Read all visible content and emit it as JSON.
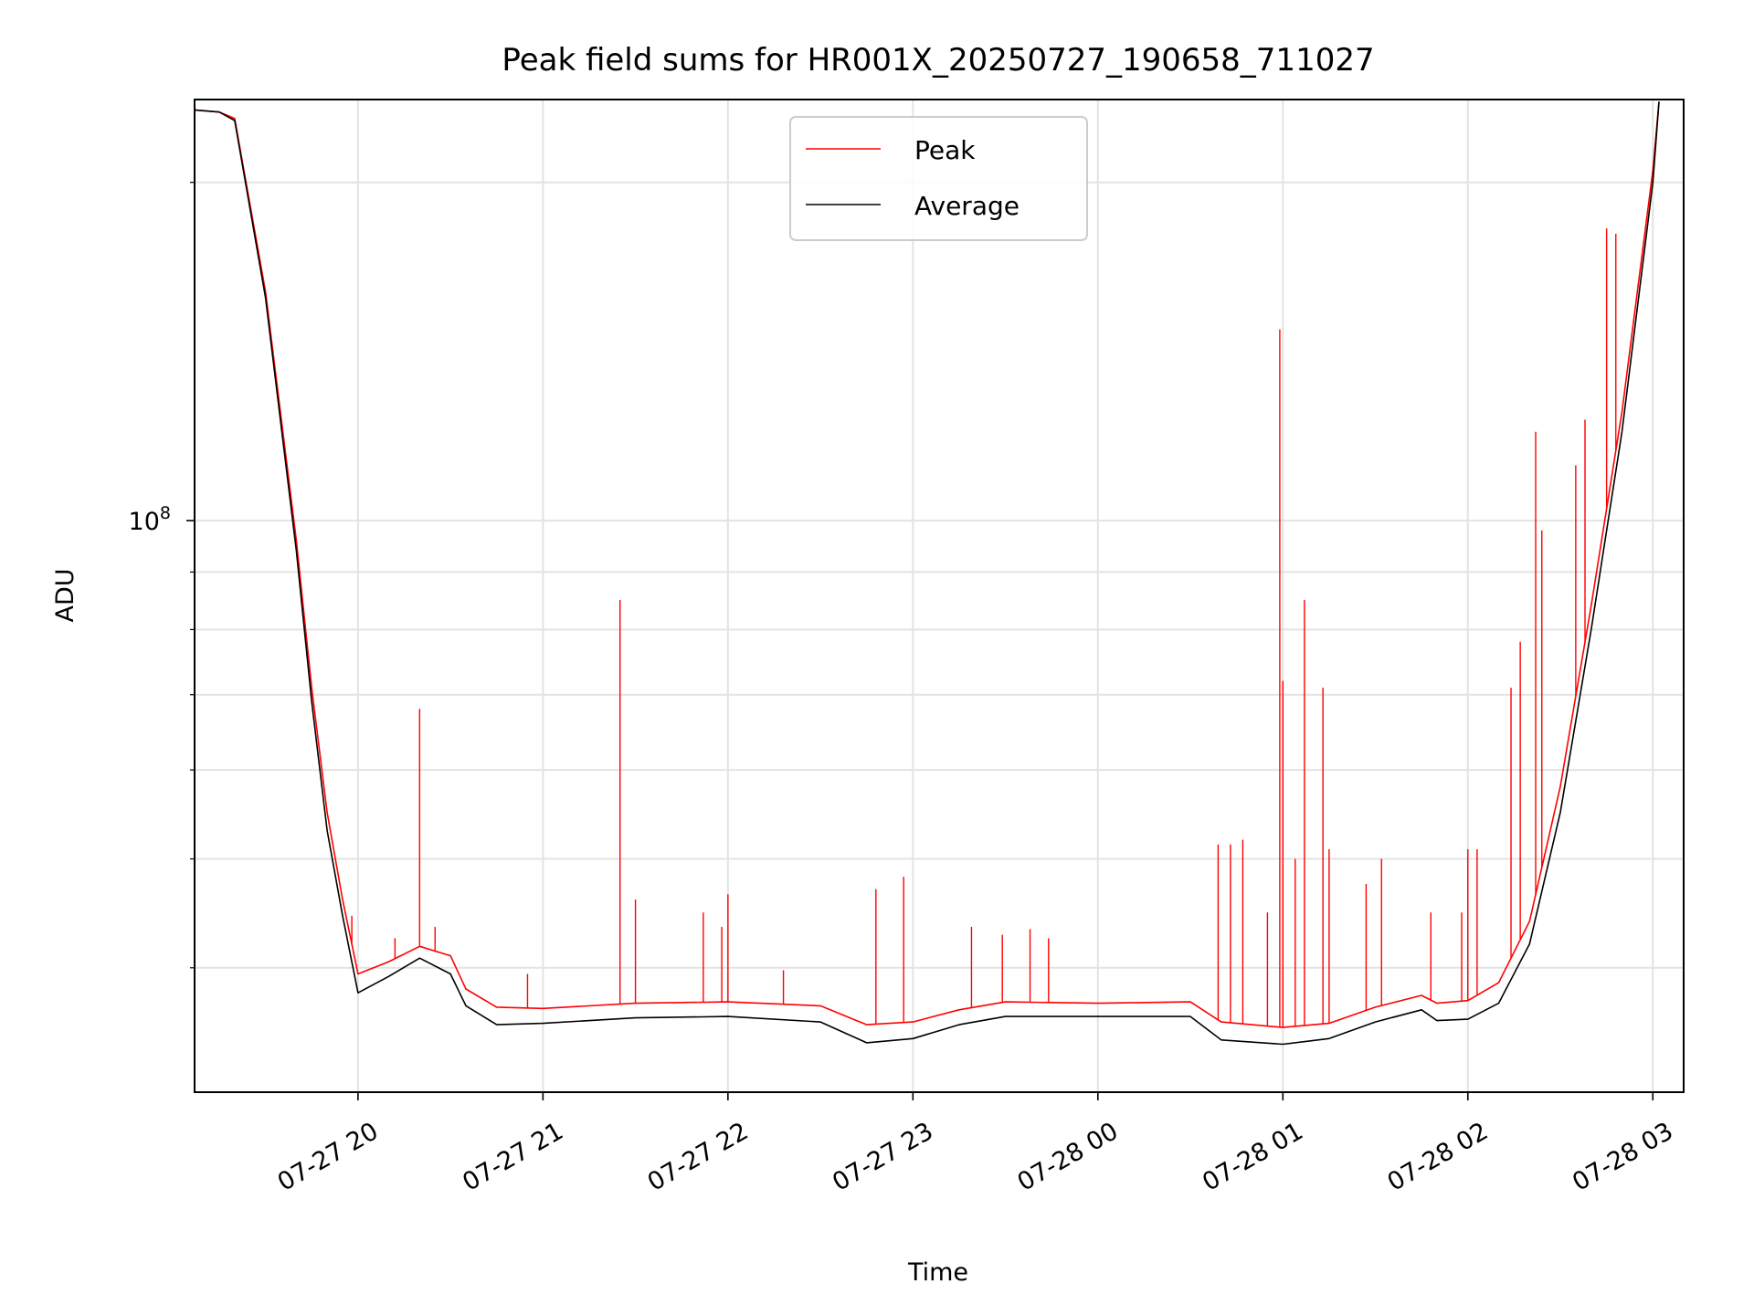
{
  "chart_data": {
    "type": "line",
    "title": "Peak field sums for HR001X_20250727_190658_711027",
    "xlabel": "Time",
    "ylabel": "ADU",
    "x_scale": "time",
    "y_scale": "log",
    "xlim": [
      "2025-07-27 19:07",
      "2025-07-28 03:10"
    ],
    "ylim": [
      31000000,
      237000000
    ],
    "x_tick_labels": [
      "07-27 20",
      "07-27 21",
      "07-27 22",
      "07-27 23",
      "07-28 00",
      "07-28 01",
      "07-28 02",
      "07-28 03"
    ],
    "y_tick_label_base": "10",
    "y_tick_label_exp": "8",
    "grid": true,
    "legend_position": "upper center",
    "series": [
      {
        "name": "Peak",
        "color": "#ff0000",
        "x": [
          "2025-07-27 19:07",
          "2025-07-27 19:15",
          "2025-07-27 19:20",
          "2025-07-27 19:30",
          "2025-07-27 19:40",
          "2025-07-27 19:45",
          "2025-07-27 19:50",
          "2025-07-27 19:55",
          "2025-07-27 20:00",
          "2025-07-27 20:10",
          "2025-07-27 20:20",
          "2025-07-27 20:30",
          "2025-07-27 20:35",
          "2025-07-27 20:45",
          "2025-07-27 21:00",
          "2025-07-27 21:30",
          "2025-07-27 22:00",
          "2025-07-27 22:30",
          "2025-07-27 22:45",
          "2025-07-27 23:00",
          "2025-07-27 23:15",
          "2025-07-27 23:30",
          "2025-07-28 00:00",
          "2025-07-28 00:30",
          "2025-07-28 00:40",
          "2025-07-28 01:00",
          "2025-07-28 01:15",
          "2025-07-28 01:30",
          "2025-07-28 01:45",
          "2025-07-28 01:50",
          "2025-07-28 02:00",
          "2025-07-28 02:10",
          "2025-07-28 02:20",
          "2025-07-28 02:30",
          "2025-07-28 02:40",
          "2025-07-28 02:50",
          "2025-07-28 03:00",
          "2025-07-28 03:02"
        ],
        "values": [
          232000000,
          231000000,
          228000000,
          160000000,
          96000000,
          71000000,
          55000000,
          46000000,
          39500000,
          40500000,
          41800000,
          41000000,
          38300000,
          36900000,
          36800000,
          37200000,
          37300000,
          37000000,
          35600000,
          35800000,
          36700000,
          37300000,
          37200000,
          37300000,
          35800000,
          35400000,
          35700000,
          36900000,
          37800000,
          37200000,
          37400000,
          38800000,
          44000000,
          58000000,
          84000000,
          125000000,
          205000000,
          236000000
        ],
        "spikes": [
          {
            "x": "2025-07-27 19:58",
            "value": 44500000
          },
          {
            "x": "2025-07-27 20:12",
            "value": 42500000
          },
          {
            "x": "2025-07-27 20:20",
            "value": 68000000
          },
          {
            "x": "2025-07-27 20:25",
            "value": 43500000
          },
          {
            "x": "2025-07-27 20:55",
            "value": 39500000
          },
          {
            "x": "2025-07-27 21:25",
            "value": 85000000
          },
          {
            "x": "2025-07-27 21:30",
            "value": 46000000
          },
          {
            "x": "2025-07-27 21:52",
            "value": 44800000
          },
          {
            "x": "2025-07-27 21:58",
            "value": 43500000
          },
          {
            "x": "2025-07-27 22:00",
            "value": 46500000
          },
          {
            "x": "2025-07-27 22:18",
            "value": 39800000
          },
          {
            "x": "2025-07-27 22:48",
            "value": 47000000
          },
          {
            "x": "2025-07-27 22:57",
            "value": 48200000
          },
          {
            "x": "2025-07-27 23:19",
            "value": 43500000
          },
          {
            "x": "2025-07-27 23:29",
            "value": 42800000
          },
          {
            "x": "2025-07-27 23:38",
            "value": 43300000
          },
          {
            "x": "2025-07-27 23:44",
            "value": 42500000
          },
          {
            "x": "2025-07-28 00:39",
            "value": 51500000
          },
          {
            "x": "2025-07-28 00:43",
            "value": 51500000
          },
          {
            "x": "2025-07-28 00:47",
            "value": 52000000
          },
          {
            "x": "2025-07-28 00:55",
            "value": 44800000
          },
          {
            "x": "2025-07-28 00:59",
            "value": 148000000
          },
          {
            "x": "2025-07-28 01:00",
            "value": 72000000
          },
          {
            "x": "2025-07-28 01:04",
            "value": 50000000
          },
          {
            "x": "2025-07-28 01:07",
            "value": 85000000
          },
          {
            "x": "2025-07-28 01:13",
            "value": 71000000
          },
          {
            "x": "2025-07-28 01:15",
            "value": 51000000
          },
          {
            "x": "2025-07-28 01:27",
            "value": 47500000
          },
          {
            "x": "2025-07-28 01:32",
            "value": 50000000
          },
          {
            "x": "2025-07-28 01:48",
            "value": 44800000
          },
          {
            "x": "2025-07-28 01:58",
            "value": 44800000
          },
          {
            "x": "2025-07-28 02:00",
            "value": 51000000
          },
          {
            "x": "2025-07-28 02:03",
            "value": 51000000
          },
          {
            "x": "2025-07-28 02:14",
            "value": 71000000
          },
          {
            "x": "2025-07-28 02:17",
            "value": 78000000
          },
          {
            "x": "2025-07-28 02:22",
            "value": 120000000
          },
          {
            "x": "2025-07-28 02:24",
            "value": 98000000
          },
          {
            "x": "2025-07-28 02:35",
            "value": 112000000
          },
          {
            "x": "2025-07-28 02:38",
            "value": 123000000
          },
          {
            "x": "2025-07-28 02:45",
            "value": 182000000
          },
          {
            "x": "2025-07-28 02:48",
            "value": 180000000
          }
        ]
      },
      {
        "name": "Average",
        "color": "#000000",
        "x": [
          "2025-07-27 19:07",
          "2025-07-27 19:15",
          "2025-07-27 19:20",
          "2025-07-27 19:30",
          "2025-07-27 19:40",
          "2025-07-27 19:45",
          "2025-07-27 19:50",
          "2025-07-27 19:55",
          "2025-07-27 20:00",
          "2025-07-27 20:10",
          "2025-07-27 20:20",
          "2025-07-27 20:30",
          "2025-07-27 20:35",
          "2025-07-27 20:45",
          "2025-07-27 21:00",
          "2025-07-27 21:30",
          "2025-07-27 22:00",
          "2025-07-27 22:30",
          "2025-07-27 22:45",
          "2025-07-27 23:00",
          "2025-07-27 23:15",
          "2025-07-27 23:30",
          "2025-07-28 00:00",
          "2025-07-28 00:30",
          "2025-07-28 00:40",
          "2025-07-28 01:00",
          "2025-07-28 01:15",
          "2025-07-28 01:30",
          "2025-07-28 01:45",
          "2025-07-28 01:50",
          "2025-07-28 02:00",
          "2025-07-28 02:10",
          "2025-07-28 02:20",
          "2025-07-28 02:30",
          "2025-07-28 02:40",
          "2025-07-28 02:50",
          "2025-07-28 03:00",
          "2025-07-28 03:02"
        ],
        "values": [
          232000000,
          231000000,
          227000000,
          158000000,
          94000000,
          69000000,
          53000000,
          44500000,
          38000000,
          39300000,
          40800000,
          39500000,
          37000000,
          35600000,
          35700000,
          36100000,
          36200000,
          35800000,
          34300000,
          34600000,
          35600000,
          36200000,
          36200000,
          36200000,
          34500000,
          34200000,
          34600000,
          35800000,
          36700000,
          35900000,
          36000000,
          37200000,
          42000000,
          55000000,
          80000000,
          120000000,
          200000000,
          236000000
        ]
      }
    ]
  }
}
